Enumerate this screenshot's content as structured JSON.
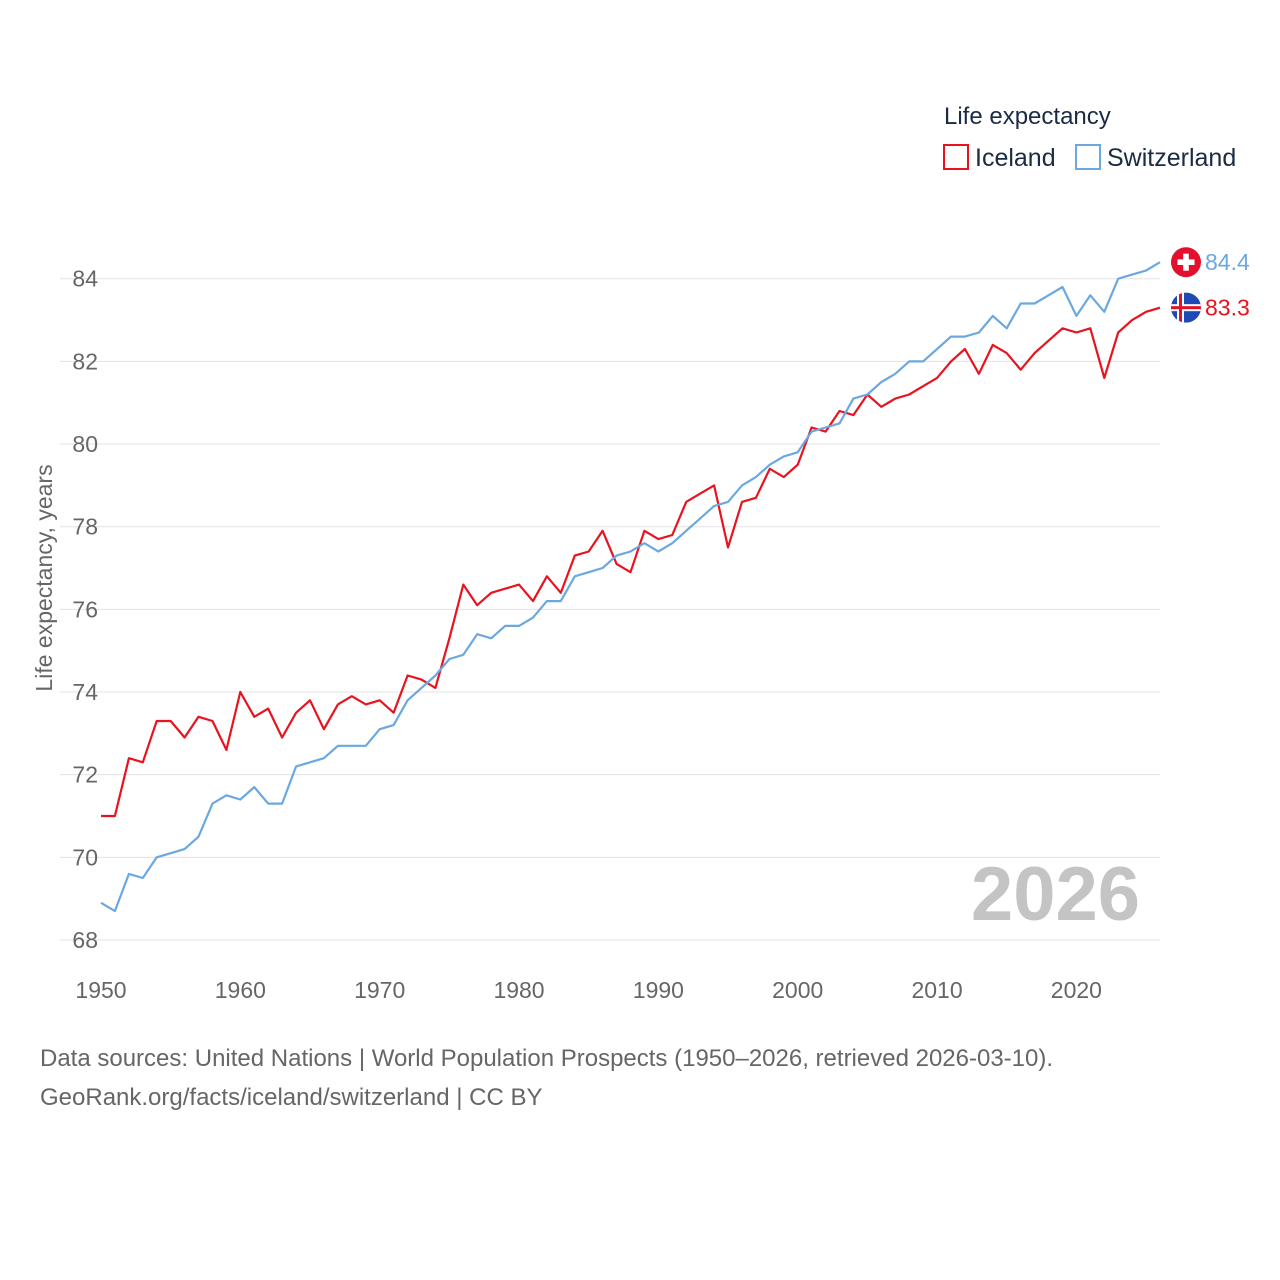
{
  "chart_data": {
    "type": "line",
    "title": "",
    "xlabel": "",
    "ylabel": "Life expectancy, years",
    "legend_title": "Life expectancy",
    "legend_position": "top-right",
    "xlim": [
      1950,
      2026
    ],
    "ylim": [
      68,
      85.3
    ],
    "x_ticks": [
      1950,
      1960,
      1970,
      1980,
      1990,
      2000,
      2010,
      2020
    ],
    "y_ticks": [
      68,
      70,
      72,
      74,
      76,
      78,
      80,
      82,
      84
    ],
    "grid": true,
    "year_watermark": "2026",
    "x": [
      1950,
      1951,
      1952,
      1953,
      1954,
      1955,
      1956,
      1957,
      1958,
      1959,
      1960,
      1961,
      1962,
      1963,
      1964,
      1965,
      1966,
      1967,
      1968,
      1969,
      1970,
      1971,
      1972,
      1973,
      1974,
      1975,
      1976,
      1977,
      1978,
      1979,
      1980,
      1981,
      1982,
      1983,
      1984,
      1985,
      1986,
      1987,
      1988,
      1989,
      1990,
      1991,
      1992,
      1993,
      1994,
      1995,
      1996,
      1997,
      1998,
      1999,
      2000,
      2001,
      2002,
      2003,
      2004,
      2005,
      2006,
      2007,
      2008,
      2009,
      2010,
      2011,
      2012,
      2013,
      2014,
      2015,
      2016,
      2017,
      2018,
      2019,
      2020,
      2021,
      2022,
      2023,
      2024,
      2025,
      2026
    ],
    "series": [
      {
        "name": "Iceland",
        "color": "#e8131f",
        "end_label": "83.3",
        "flag": "iceland-flag-icon",
        "values": [
          71.0,
          71.0,
          72.4,
          72.3,
          73.3,
          73.3,
          72.9,
          73.4,
          73.3,
          72.6,
          74.0,
          73.4,
          73.6,
          72.9,
          73.5,
          73.8,
          73.1,
          73.7,
          73.9,
          73.7,
          73.8,
          73.5,
          74.4,
          74.3,
          74.1,
          75.3,
          76.6,
          76.1,
          76.4,
          76.5,
          76.6,
          76.2,
          76.8,
          76.4,
          77.3,
          77.4,
          77.9,
          77.1,
          76.9,
          77.9,
          77.7,
          77.8,
          78.6,
          78.8,
          79.0,
          77.5,
          78.6,
          78.7,
          79.4,
          79.2,
          79.5,
          80.4,
          80.3,
          80.8,
          80.7,
          81.2,
          80.9,
          81.1,
          81.2,
          81.4,
          81.6,
          82.0,
          82.3,
          81.7,
          82.4,
          82.2,
          81.8,
          82.2,
          82.5,
          82.8,
          82.7,
          82.8,
          81.6,
          82.7,
          83.0,
          83.2,
          83.3
        ]
      },
      {
        "name": "Switzerland",
        "color": "#6ba8e1",
        "end_label": "84.4",
        "flag": "switzerland-flag-icon",
        "values": [
          68.9,
          68.7,
          69.6,
          69.5,
          70.0,
          70.1,
          70.2,
          70.5,
          71.3,
          71.5,
          71.4,
          71.7,
          71.3,
          71.3,
          72.2,
          72.3,
          72.4,
          72.7,
          72.7,
          72.7,
          73.1,
          73.2,
          73.8,
          74.1,
          74.4,
          74.8,
          74.9,
          75.4,
          75.3,
          75.6,
          75.6,
          75.8,
          76.2,
          76.2,
          76.8,
          76.9,
          77.0,
          77.3,
          77.4,
          77.6,
          77.4,
          77.6,
          77.9,
          78.2,
          78.5,
          78.6,
          79.0,
          79.2,
          79.5,
          79.7,
          79.8,
          80.3,
          80.4,
          80.5,
          81.1,
          81.2,
          81.5,
          81.7,
          82.0,
          82.0,
          82.3,
          82.6,
          82.6,
          82.7,
          83.1,
          82.8,
          83.4,
          83.4,
          83.6,
          83.8,
          83.1,
          83.6,
          83.2,
          84.0,
          84.1,
          84.2,
          84.4
        ]
      }
    ]
  },
  "footer": {
    "source_line": "Data sources: United Nations | World Population Prospects (1950–2026, retrieved 2026-03-10).",
    "attribution_line": "GeoRank.org/facts/iceland/switzerland | CC BY"
  }
}
